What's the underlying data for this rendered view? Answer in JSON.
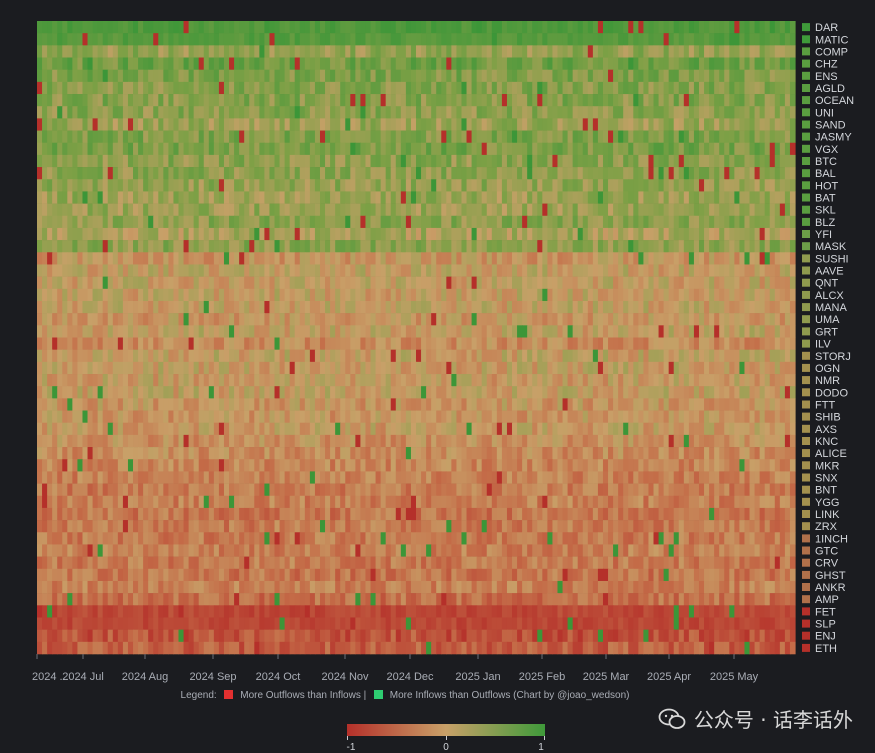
{
  "chart_data": {
    "type": "heatmap",
    "x_ticks": [
      "2024 ...",
      "2024 Jul",
      "2024 Aug",
      "2024 Sep",
      "2024 Oct",
      "2024 Nov",
      "2024 Dec",
      "2025 Jan",
      "2025 Feb",
      "2025 Mar",
      "2025 Apr",
      "2025 May"
    ],
    "rows": [
      {
        "name": "DAR",
        "mean": 0.85,
        "color": "#3f9a3a"
      },
      {
        "name": "MATIC",
        "mean": 0.8,
        "color": "#3f9a3a"
      },
      {
        "name": "COMP",
        "mean": 0.35,
        "color": "#5a9e40"
      },
      {
        "name": "CHZ",
        "mean": 0.6,
        "color": "#5a9e40"
      },
      {
        "name": "ENS",
        "mean": 0.5,
        "color": "#5a9e40"
      },
      {
        "name": "AGLD",
        "mean": 0.45,
        "color": "#5a9e40"
      },
      {
        "name": "OCEAN",
        "mean": 0.45,
        "color": "#5a9e40"
      },
      {
        "name": "UNI",
        "mean": 0.4,
        "color": "#5a9e40"
      },
      {
        "name": "SAND",
        "mean": 0.3,
        "color": "#5a9e40"
      },
      {
        "name": "JASMY",
        "mean": 0.5,
        "color": "#5a9e40"
      },
      {
        "name": "VGX",
        "mean": 0.55,
        "color": "#5a9e40"
      },
      {
        "name": "BTC",
        "mean": 0.4,
        "color": "#5a9e40"
      },
      {
        "name": "BAL",
        "mean": 0.4,
        "color": "#5a9e40"
      },
      {
        "name": "HOT",
        "mean": 0.35,
        "color": "#5a9e40"
      },
      {
        "name": "BAT",
        "mean": 0.3,
        "color": "#5a9e40"
      },
      {
        "name": "SKL",
        "mean": 0.3,
        "color": "#5a9e40"
      },
      {
        "name": "BLZ",
        "mean": 0.4,
        "color": "#5a9e40"
      },
      {
        "name": "YFI",
        "mean": 0.2,
        "color": "#6c9e48"
      },
      {
        "name": "MASK",
        "mean": 0.4,
        "color": "#6c9e48"
      },
      {
        "name": "SUSHI",
        "mean": -0.1,
        "color": "#8f9a4e"
      },
      {
        "name": "AAVE",
        "mean": 0.0,
        "color": "#8f9a4e"
      },
      {
        "name": "QNT",
        "mean": 0.0,
        "color": "#8f9a4e"
      },
      {
        "name": "ALCX",
        "mean": 0.0,
        "color": "#8f9a4e"
      },
      {
        "name": "MANA",
        "mean": 0.0,
        "color": "#8f9a4e"
      },
      {
        "name": "UMA",
        "mean": -0.1,
        "color": "#8f9a4e"
      },
      {
        "name": "GRT",
        "mean": 0.0,
        "color": "#8f9a4e"
      },
      {
        "name": "ILV",
        "mean": -0.2,
        "color": "#8f9a4e"
      },
      {
        "name": "STORJ",
        "mean": 0.0,
        "color": "#a3904e"
      },
      {
        "name": "OGN",
        "mean": 0.0,
        "color": "#a3904e"
      },
      {
        "name": "NMR",
        "mean": -0.05,
        "color": "#a3904e"
      },
      {
        "name": "DODO",
        "mean": 0.0,
        "color": "#a3904e"
      },
      {
        "name": "FTT",
        "mean": -0.1,
        "color": "#a3904e"
      },
      {
        "name": "SHIB",
        "mean": -0.1,
        "color": "#a3904e"
      },
      {
        "name": "AXS",
        "mean": -0.05,
        "color": "#a3904e"
      },
      {
        "name": "KNC",
        "mean": -0.15,
        "color": "#a3904e"
      },
      {
        "name": "ALICE",
        "mean": -0.2,
        "color": "#a3904e"
      },
      {
        "name": "MKR",
        "mean": -0.25,
        "color": "#a3904e"
      },
      {
        "name": "SNX",
        "mean": -0.3,
        "color": "#a3904e"
      },
      {
        "name": "BNT",
        "mean": -0.35,
        "color": "#a3904e"
      },
      {
        "name": "YGG",
        "mean": -0.3,
        "color": "#a3904e"
      },
      {
        "name": "LINK",
        "mean": -0.4,
        "color": "#a3904e"
      },
      {
        "name": "ZRX",
        "mean": -0.35,
        "color": "#a3904e"
      },
      {
        "name": "1INCH",
        "mean": -0.35,
        "color": "#b0704a"
      },
      {
        "name": "GTC",
        "mean": -0.3,
        "color": "#b0704a"
      },
      {
        "name": "CRV",
        "mean": -0.35,
        "color": "#b0704a"
      },
      {
        "name": "GHST",
        "mean": -0.4,
        "color": "#b0704a"
      },
      {
        "name": "ANKR",
        "mean": -0.3,
        "color": "#b0704a"
      },
      {
        "name": "AMP",
        "mean": -0.45,
        "color": "#b0704a"
      },
      {
        "name": "FET",
        "mean": -0.8,
        "color": "#b5302a"
      },
      {
        "name": "SLP",
        "mean": -0.8,
        "color": "#b5302a"
      },
      {
        "name": "ENJ",
        "mean": -0.7,
        "color": "#b5302a"
      },
      {
        "name": "ETH",
        "mean": -0.6,
        "color": "#b5302a"
      }
    ],
    "colorbar": {
      "min": -1,
      "mid": 0,
      "max": 1,
      "labels": [
        "-1",
        "0",
        "1"
      ]
    },
    "legend": {
      "prefix": "Legend:",
      "outflow_label": "More Outflows than Inflows |",
      "inflow_label": "More Inflows than Outflows (Chart by @joao_wedson)",
      "outflow_color": "#e33030",
      "inflow_color": "#2ecc71"
    }
  },
  "watermark": {
    "text": "公众号 · 话李话外",
    "icon": "wechat-icon"
  }
}
